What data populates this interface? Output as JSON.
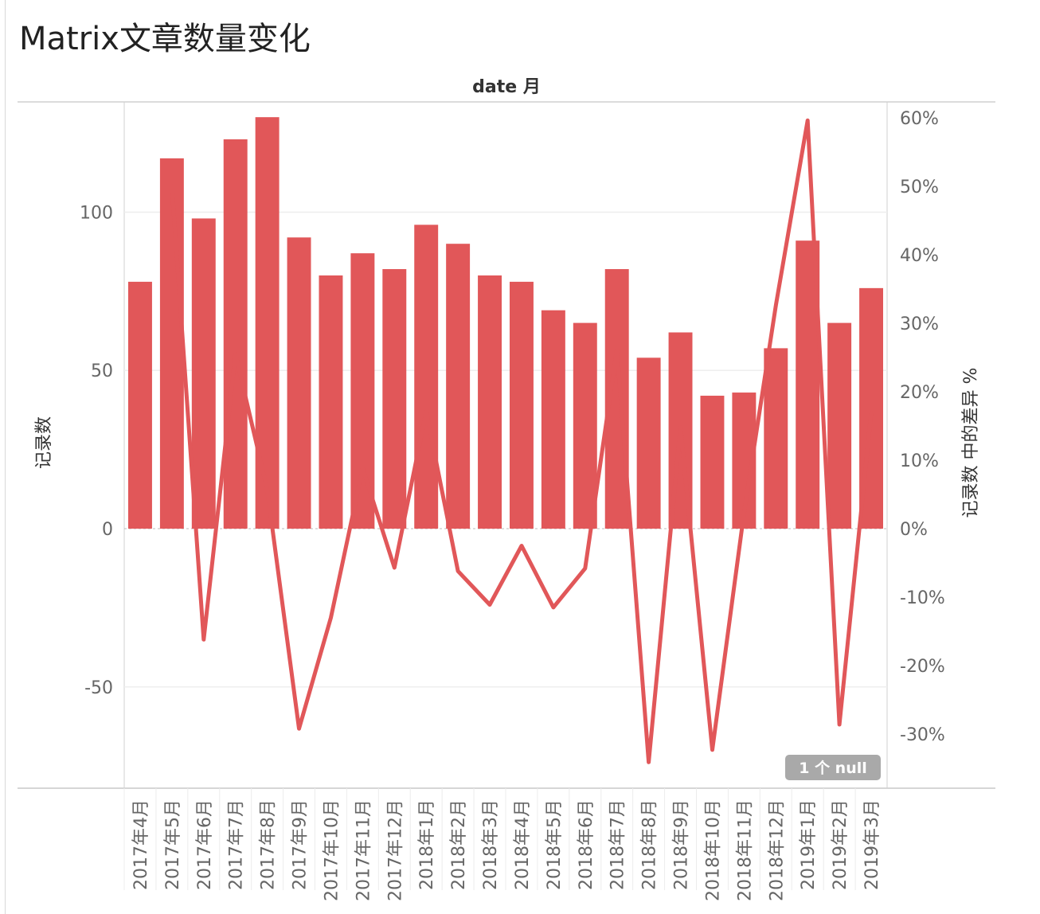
{
  "title": "Matrix文章数量变化",
  "chart_data": {
    "type": "bar",
    "column_header": "date 月",
    "categories": [
      "2017年4月",
      "2017年5月",
      "2017年6月",
      "2017年7月",
      "2017年8月",
      "2017年9月",
      "2017年10月",
      "2017年11月",
      "2017年12月",
      "2018年1月",
      "2018年2月",
      "2018年3月",
      "2018年4月",
      "2018年5月",
      "2018年6月",
      "2018年7月",
      "2018年8月",
      "2018年9月",
      "2018年10月",
      "2018年11月",
      "2018年12月",
      "2019年1月",
      "2019年2月",
      "2019年3月"
    ],
    "series": [
      {
        "type": "bar",
        "axis": "left",
        "values": [
          78,
          117,
          98,
          123,
          130,
          92,
          80,
          87,
          82,
          96,
          90,
          80,
          78,
          69,
          65,
          82,
          54,
          62,
          42,
          43,
          57,
          91,
          65,
          76
        ]
      },
      {
        "type": "line",
        "axis": "right",
        "values": [
          null,
          50.0,
          -16.2,
          25.5,
          5.7,
          -29.2,
          -13.0,
          8.8,
          -5.7,
          17.1,
          -6.2,
          -11.1,
          -2.5,
          -11.5,
          -5.8,
          26.2,
          -34.1,
          14.8,
          -32.3,
          2.4,
          32.6,
          59.6,
          -28.6,
          16.9
        ]
      }
    ],
    "ylabel": "记录数",
    "ylabel_right": "记录数 中的差异 %",
    "ylim": [
      -82,
      139
    ],
    "ylim_right": [
      -37.9,
      64.2
    ],
    "yticks": [
      "100",
      "50",
      "0",
      "-50"
    ],
    "yticks_right": [
      "60%",
      "50%",
      "40%",
      "30%",
      "20%",
      "10%",
      "0%",
      "-10%",
      "-20%",
      "-30%"
    ],
    "ytick_values": [
      100,
      50,
      0,
      -50
    ],
    "ytick_right_values": [
      60,
      50,
      40,
      30,
      20,
      10,
      0,
      -10,
      -20,
      -30
    ],
    "grid": true,
    "null_indicator": "1 个 null",
    "colors": {
      "bar": "#e15759",
      "line": "#e15759"
    }
  }
}
